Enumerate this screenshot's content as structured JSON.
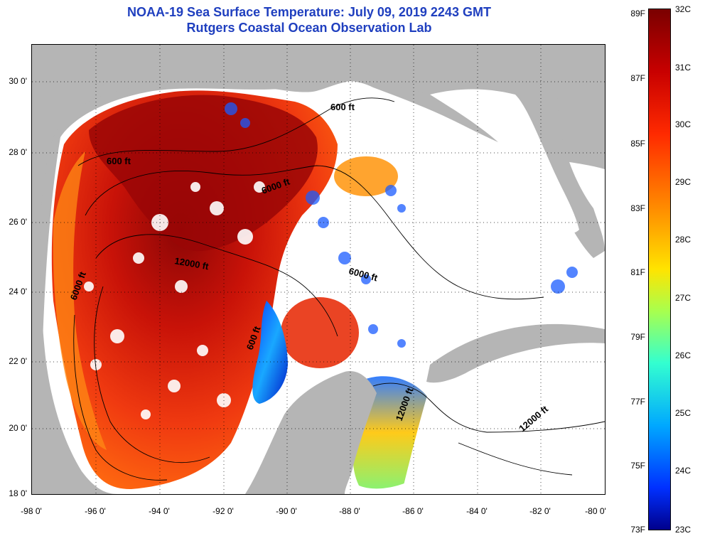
{
  "header": {
    "title": "NOAA-19 Sea Surface Temperature:  July 09, 2019 2243 GMT",
    "subtitle": "Rutgers Coastal Ocean Observation Lab"
  },
  "axes": {
    "y_ticks": [
      "30 0'",
      "28 0'",
      "26 0'",
      "24 0'",
      "22 0'",
      "20 0'",
      "18 0'"
    ],
    "x_ticks": [
      "-98 0'",
      "-96 0'",
      "-94 0'",
      "-92 0'",
      "-90 0'",
      "-88 0'",
      "-86 0'",
      "-84 0'",
      "-82 0'",
      "-80 0'"
    ]
  },
  "contour_labels": {
    "a": "600 ft",
    "b": "600 ft",
    "c": "6000 ft",
    "d": "6000 ft",
    "e": "6000 ft",
    "f": "12000 ft",
    "g": "12000 ft",
    "h": "12000 ft",
    "i": "600 ft"
  },
  "colorbar": {
    "fahrenheit": [
      "89F",
      "87F",
      "85F",
      "83F",
      "81F",
      "79F",
      "77F",
      "75F",
      "73F"
    ],
    "celsius": [
      "32C",
      "31C",
      "30C",
      "29C",
      "28C",
      "27C",
      "26C",
      "25C",
      "24C",
      "23C"
    ]
  },
  "colors": {
    "title": "#1f3fbf",
    "land": "#b5b5b5",
    "warm": "#c80000",
    "cool": "#0030ff"
  }
}
